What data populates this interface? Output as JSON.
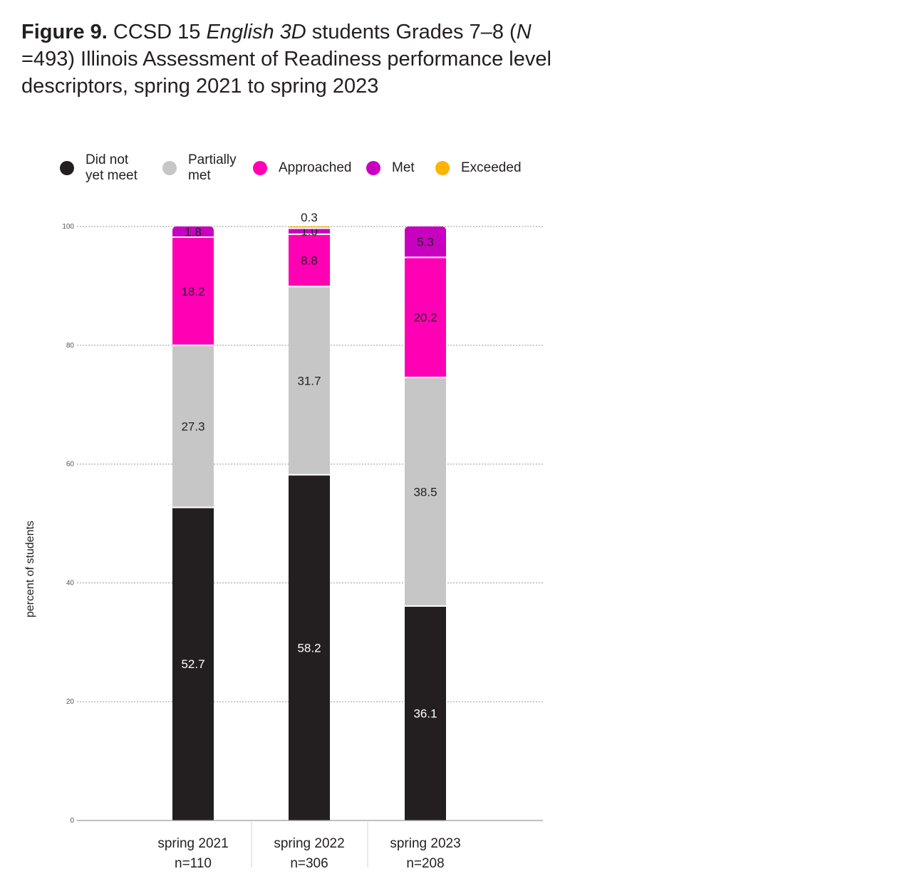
{
  "title": {
    "bold": "Figure 9.",
    "pre": " CCSD 15 ",
    "italic1": "English 3D",
    "mid": " students Grades 7–8 (",
    "italic2": "N",
    "post": " =493) Illinois Assessment of Readiness performance level descriptors, spring 2021 to spring 2023"
  },
  "chart_data": {
    "type": "bar",
    "stacked": true,
    "categories": [
      "spring 2021",
      "spring 2022",
      "spring 2023"
    ],
    "category_n": [
      "n=110",
      "n=306",
      "n=208"
    ],
    "ylabel": "percent of students",
    "xlabel": "",
    "ylim": [
      0,
      100
    ],
    "yticks": [
      0,
      20,
      40,
      60,
      80,
      100
    ],
    "grid": true,
    "legend_position": "top",
    "series": [
      {
        "name": "Did not\nyet meet",
        "color": "#231f20",
        "label_color": "#ffffff",
        "values": [
          52.7,
          58.2,
          36.1
        ]
      },
      {
        "name": "Partially\nmet",
        "color": "#c6c6c6",
        "label_color": "#231f20",
        "values": [
          27.3,
          31.7,
          38.5
        ]
      },
      {
        "name": "Approached",
        "color": "#ff00b4",
        "label_color": "#231f20",
        "values": [
          18.2,
          8.8,
          20.2
        ]
      },
      {
        "name": "Met",
        "color": "#c800c0",
        "label_color": "#231f20",
        "values": [
          1.8,
          1.0,
          5.3
        ]
      },
      {
        "name": "Exceeded",
        "color": "#ffb400",
        "label_color": "#231f20",
        "values": [
          0.0,
          0.3,
          0.0
        ]
      }
    ],
    "data_labels": [
      [
        "52.7",
        "58.2",
        "36.1"
      ],
      [
        "27.3",
        "31.7",
        "38.5"
      ],
      [
        "18.2",
        "8.8",
        "20.2"
      ],
      [
        "1.8",
        "1.0",
        "5.3"
      ],
      [
        "",
        "0.3",
        ""
      ]
    ]
  }
}
